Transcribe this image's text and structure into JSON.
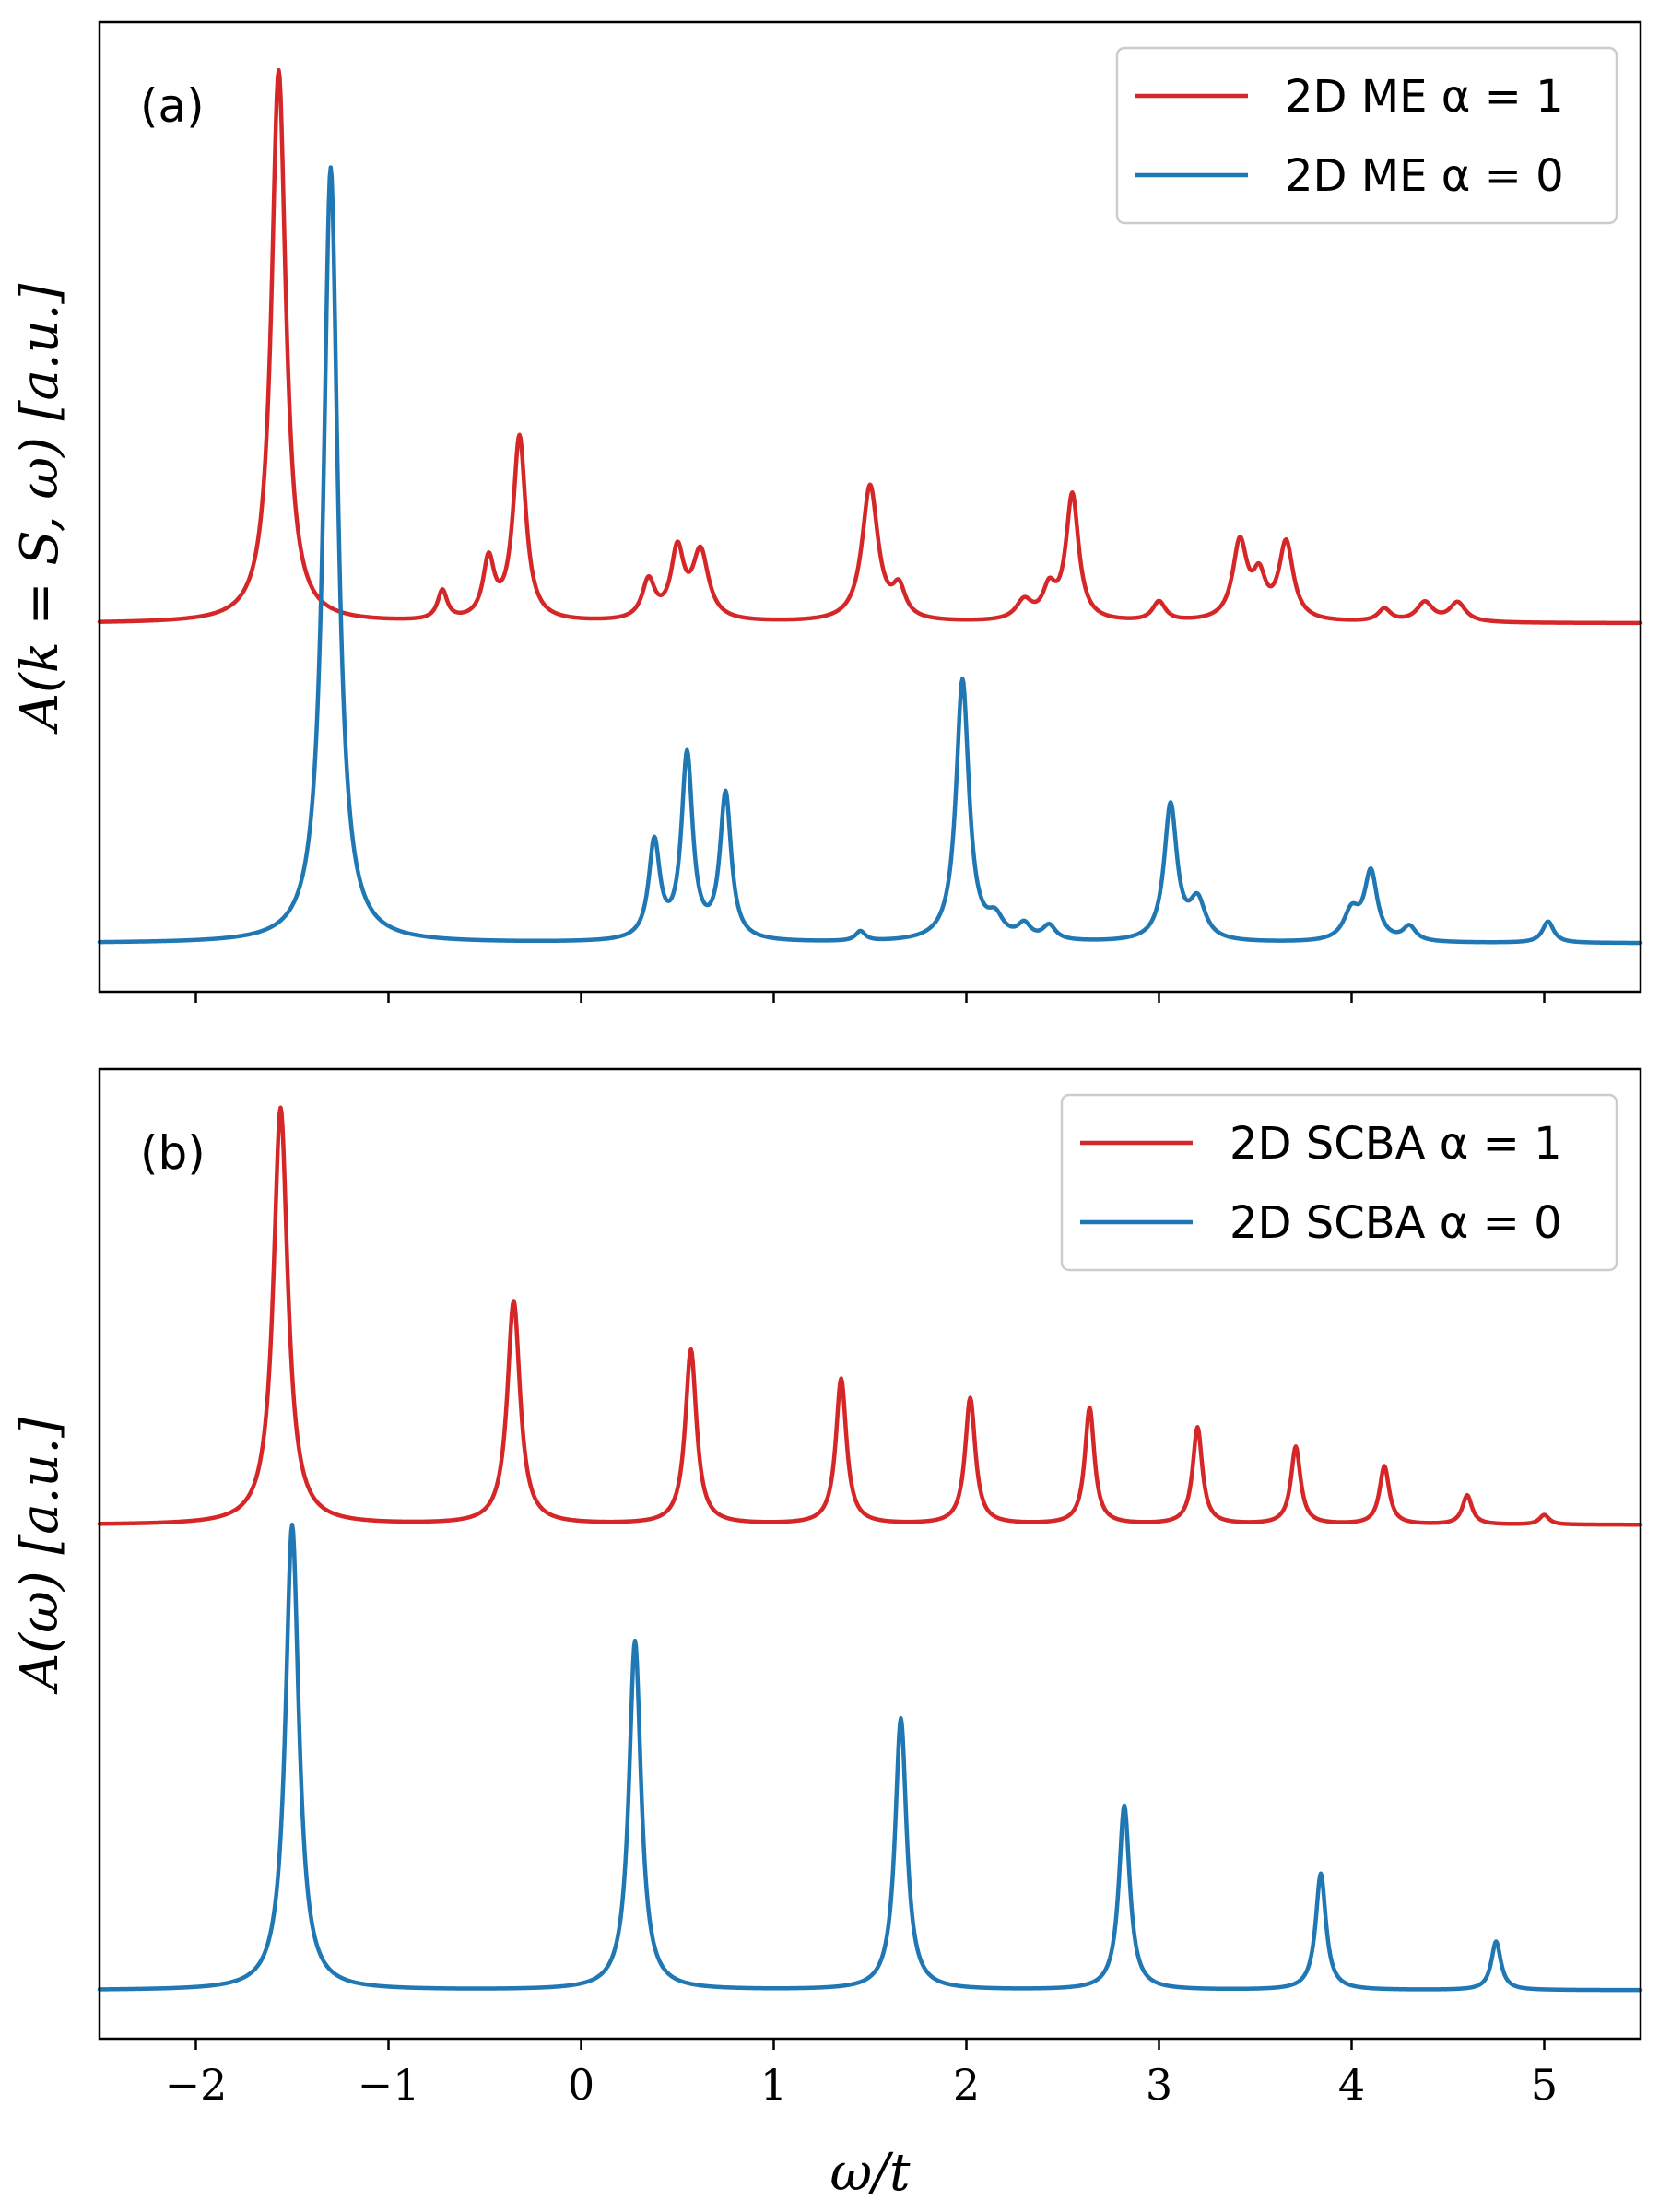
{
  "chart_data": [
    {
      "type": "line",
      "panel_label": "(a)",
      "xlabel": "",
      "ylabel": "A(k = S, ω) [a.u.]",
      "xlim": [
        -2.5,
        5.5
      ],
      "ylim": [
        0,
        1
      ],
      "xticks": [
        -2,
        -1,
        0,
        1,
        2,
        3,
        4,
        5
      ],
      "legend_position": "top-right",
      "series": [
        {
          "name": "2D ME α = 1",
          "color": "#d62728",
          "baseline": 0.38,
          "peaks": [
            {
              "x": -1.57,
              "h": 0.57,
              "w": 0.045
            },
            {
              "x": -0.72,
              "h": 0.03,
              "w": 0.03
            },
            {
              "x": -0.48,
              "h": 0.06,
              "w": 0.035
            },
            {
              "x": -0.32,
              "h": 0.19,
              "w": 0.04
            },
            {
              "x": 0.35,
              "h": 0.04,
              "w": 0.04
            },
            {
              "x": 0.5,
              "h": 0.07,
              "w": 0.04
            },
            {
              "x": 0.62,
              "h": 0.07,
              "w": 0.05
            },
            {
              "x": 1.5,
              "h": 0.14,
              "w": 0.05
            },
            {
              "x": 1.65,
              "h": 0.03,
              "w": 0.04
            },
            {
              "x": 2.3,
              "h": 0.02,
              "w": 0.05
            },
            {
              "x": 2.43,
              "h": 0.03,
              "w": 0.04
            },
            {
              "x": 2.55,
              "h": 0.13,
              "w": 0.04
            },
            {
              "x": 3.0,
              "h": 0.02,
              "w": 0.04
            },
            {
              "x": 3.42,
              "h": 0.08,
              "w": 0.045
            },
            {
              "x": 3.52,
              "h": 0.04,
              "w": 0.04
            },
            {
              "x": 3.66,
              "h": 0.08,
              "w": 0.045
            },
            {
              "x": 4.17,
              "h": 0.013,
              "w": 0.04
            },
            {
              "x": 4.38,
              "h": 0.02,
              "w": 0.05
            },
            {
              "x": 4.55,
              "h": 0.02,
              "w": 0.05
            }
          ]
        },
        {
          "name": "2D ME α = 0",
          "color": "#1f77b4",
          "baseline": 0.05,
          "peaks": [
            {
              "x": -1.3,
              "h": 0.8,
              "w": 0.045
            },
            {
              "x": 0.38,
              "h": 0.1,
              "w": 0.035
            },
            {
              "x": 0.55,
              "h": 0.19,
              "w": 0.035
            },
            {
              "x": 0.75,
              "h": 0.15,
              "w": 0.035
            },
            {
              "x": 1.45,
              "h": 0.01,
              "w": 0.03
            },
            {
              "x": 1.98,
              "h": 0.27,
              "w": 0.04
            },
            {
              "x": 2.15,
              "h": 0.02,
              "w": 0.05
            },
            {
              "x": 2.3,
              "h": 0.015,
              "w": 0.04
            },
            {
              "x": 2.43,
              "h": 0.015,
              "w": 0.04
            },
            {
              "x": 3.06,
              "h": 0.14,
              "w": 0.04
            },
            {
              "x": 3.2,
              "h": 0.04,
              "w": 0.05
            },
            {
              "x": 4.0,
              "h": 0.03,
              "w": 0.05
            },
            {
              "x": 4.1,
              "h": 0.07,
              "w": 0.04
            },
            {
              "x": 4.3,
              "h": 0.015,
              "w": 0.04
            },
            {
              "x": 5.02,
              "h": 0.022,
              "w": 0.035
            }
          ]
        }
      ]
    },
    {
      "type": "line",
      "panel_label": "(b)",
      "xlabel": "ω/t",
      "ylabel": "A(ω) [a.u.]",
      "xlim": [
        -2.5,
        5.5
      ],
      "ylim": [
        0,
        1
      ],
      "xticks": [
        -2,
        -1,
        0,
        1,
        2,
        3,
        4,
        5
      ],
      "xticklabels": [
        "−2",
        "−1",
        "0",
        "1",
        "2",
        "3",
        "4",
        "5"
      ],
      "legend_position": "top-right",
      "series": [
        {
          "name": "2D SCBA α = 1",
          "color": "#d62728",
          "baseline": 0.53,
          "peaks": [
            {
              "x": -1.56,
              "h": 0.43,
              "w": 0.045
            },
            {
              "x": -0.35,
              "h": 0.23,
              "w": 0.04
            },
            {
              "x": 0.57,
              "h": 0.18,
              "w": 0.035
            },
            {
              "x": 1.35,
              "h": 0.15,
              "w": 0.033
            },
            {
              "x": 2.02,
              "h": 0.13,
              "w": 0.032
            },
            {
              "x": 2.64,
              "h": 0.12,
              "w": 0.03
            },
            {
              "x": 3.2,
              "h": 0.1,
              "w": 0.03
            },
            {
              "x": 3.71,
              "h": 0.08,
              "w": 0.03
            },
            {
              "x": 4.17,
              "h": 0.06,
              "w": 0.03
            },
            {
              "x": 4.6,
              "h": 0.03,
              "w": 0.03
            },
            {
              "x": 5.0,
              "h": 0.01,
              "w": 0.03
            }
          ]
        },
        {
          "name": "2D SCBA α = 0",
          "color": "#1f77b4",
          "baseline": 0.05,
          "peaks": [
            {
              "x": -1.5,
              "h": 0.48,
              "w": 0.042
            },
            {
              "x": 0.28,
              "h": 0.36,
              "w": 0.038
            },
            {
              "x": 1.66,
              "h": 0.28,
              "w": 0.036
            },
            {
              "x": 2.82,
              "h": 0.19,
              "w": 0.034
            },
            {
              "x": 3.84,
              "h": 0.12,
              "w": 0.032
            },
            {
              "x": 4.75,
              "h": 0.05,
              "w": 0.03
            }
          ]
        }
      ]
    }
  ]
}
